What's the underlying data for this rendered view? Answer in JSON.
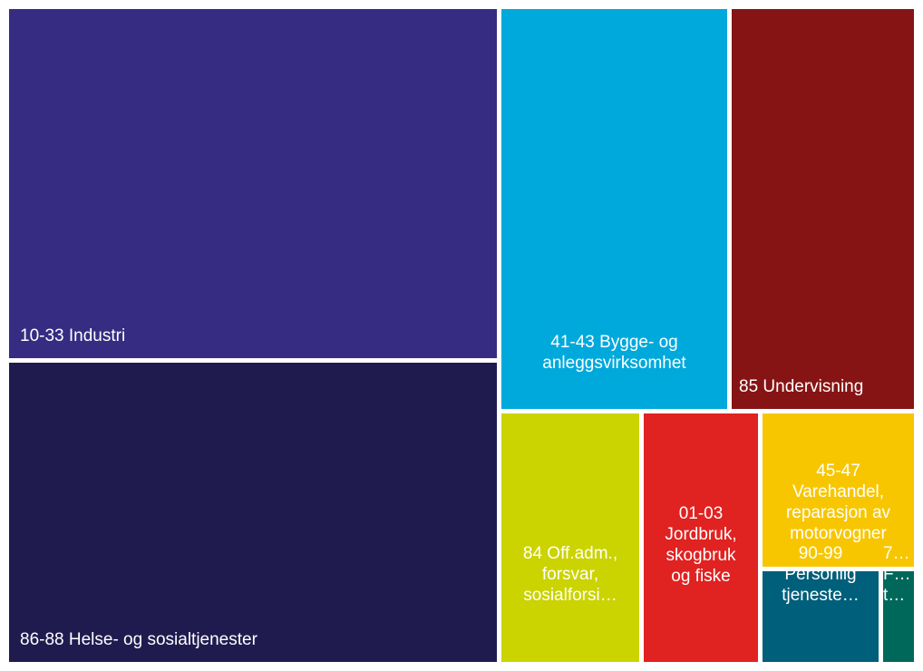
{
  "chart_data": {
    "type": "treemap",
    "tiles": [
      {
        "id": "industri",
        "label": "10-33 Industri",
        "color": "#362c82"
      },
      {
        "id": "helse",
        "label": "86-88 Helse- og sosialtjenester",
        "color": "#201b4f"
      },
      {
        "id": "bygg",
        "label": "41-43 Bygge- og\nanleggsvirksomhet",
        "color": "#00a9dc"
      },
      {
        "id": "undervisning",
        "label": "85 Undervisning",
        "color": "#861414"
      },
      {
        "id": "offadm",
        "label": "84 Off.adm.,\nforsvar,\nsosialforsi…",
        "color": "#cbd300"
      },
      {
        "id": "jordbruk",
        "label": "01-03\nJordbruk,\nskogbruk\nog fiske",
        "color": "#e02221"
      },
      {
        "id": "varehandel",
        "label": "45-47\nVarehandel,\nreparasjon av\nmotorvogner",
        "color": "#f8c600"
      },
      {
        "id": "personlig",
        "label": "90-99\nPersonlig\ntjeneste…",
        "color": "#005f7a"
      },
      {
        "id": "siste",
        "label": "7…\nF…\nt…",
        "color": "#00685a"
      }
    ]
  }
}
